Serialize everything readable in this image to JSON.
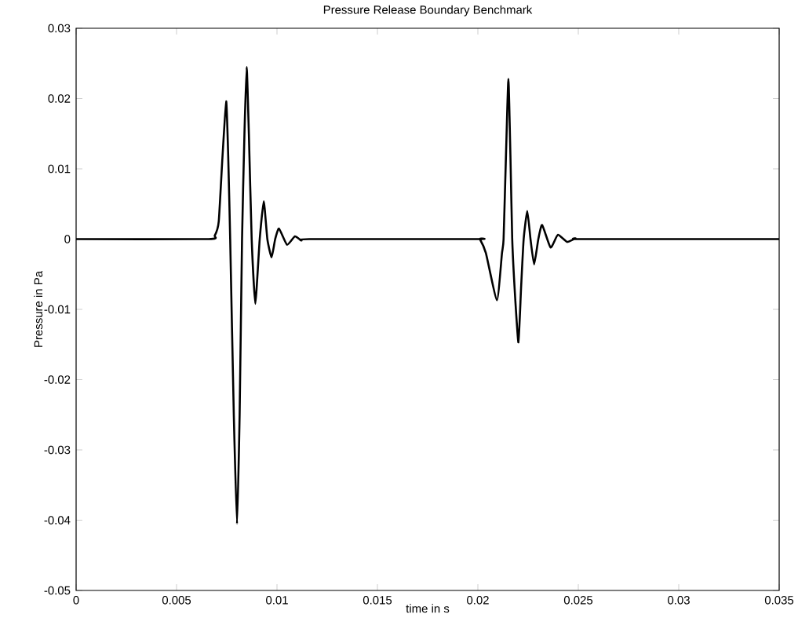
{
  "chart_data": {
    "type": "line",
    "title": "Pressure Release Boundary Benchmark",
    "xlabel": "time in s",
    "ylabel": "Pressure in Pa",
    "xlim": [
      0,
      0.035
    ],
    "ylim": [
      -0.05,
      0.03
    ],
    "xticks": [
      0,
      0.005,
      0.01,
      0.015,
      0.02,
      0.025,
      0.03,
      0.035
    ],
    "yticks": [
      -0.05,
      -0.04,
      -0.03,
      -0.02,
      -0.01,
      0,
      0.01,
      0.02,
      0.03
    ],
    "series": [
      {
        "color": "#000000",
        "x": [
          0,
          0.0066,
          0.0069,
          0.0071,
          0.00728,
          0.00747,
          0.00757,
          0.00767,
          0.00785,
          0.00801,
          0.00814,
          0.00826,
          0.00838,
          0.00849,
          0.0086,
          0.00874,
          0.00892,
          0.00914,
          0.00934,
          0.00952,
          0.00973,
          0.00991,
          0.0101,
          0.0105,
          0.01089,
          0.01122,
          0.0116,
          0.02,
          0.0201,
          0.0204,
          0.02095,
          0.0212,
          0.02128,
          0.0214,
          0.02152,
          0.02162,
          0.02171,
          0.02185,
          0.02202,
          0.02215,
          0.02228,
          0.02246,
          0.02262,
          0.0228,
          0.02301,
          0.0232,
          0.02362,
          0.02398,
          0.02444,
          0.02486,
          0.0252,
          0.035
        ],
        "values": [
          0,
          0,
          0.0005,
          0.0025,
          0.0114,
          0.0196,
          0.012,
          0,
          -0.025,
          -0.0405,
          -0.025,
          0,
          0.015,
          0.0245,
          0.015,
          0,
          -0.0092,
          0,
          0.0054,
          0,
          -0.0026,
          0,
          0.0015,
          -0.0008,
          0.0004,
          -0.0002,
          0,
          0,
          0,
          -0.002,
          -0.0087,
          -0.002,
          0,
          0.012,
          0.0228,
          0.012,
          0,
          -0.008,
          -0.0147,
          -0.007,
          0,
          0.004,
          0,
          -0.0036,
          0,
          0.002,
          -0.0012,
          0.0006,
          -0.0004,
          0.0001,
          0,
          0
        ]
      }
    ],
    "line_style": "solid"
  }
}
